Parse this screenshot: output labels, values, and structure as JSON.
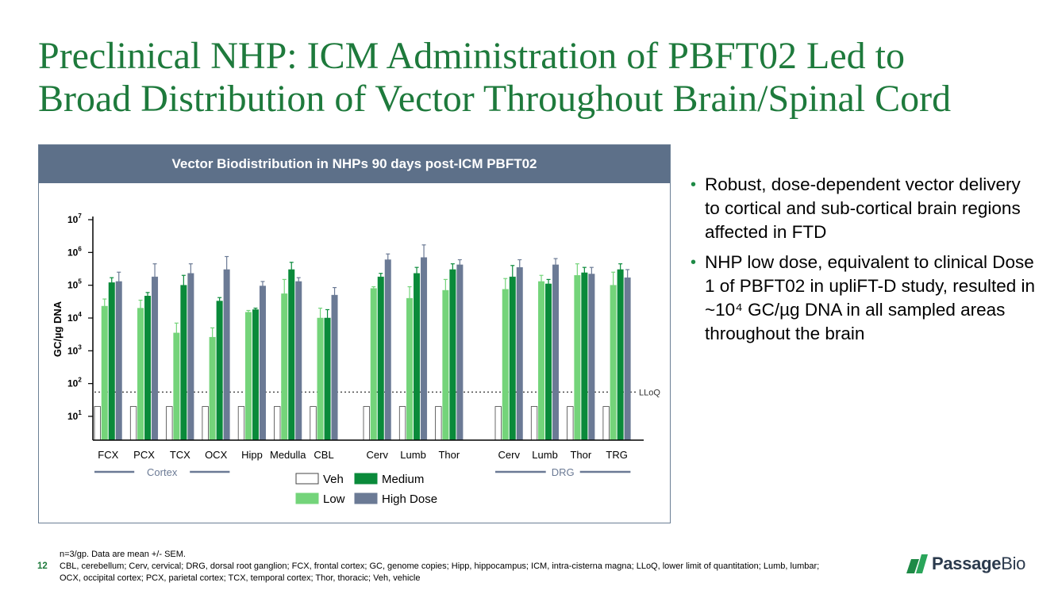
{
  "slide": {
    "title_line1": "Preclinical NHP: ICM Administration of PBFT02 Led to",
    "title_line2": "Broad Distribution of Vector Throughout Brain/Spinal Cord",
    "bullets": [
      "Robust, dose-dependent vector delivery to cortical and sub-cortical brain regions affected in FTD",
      "NHP low dose, equivalent to clinical Dose 1 of PBFT02 in upliFT-D study, resulted in ~10⁴ GC/µg DNA in all sampled areas throughout the brain"
    ],
    "footnote_line1": "n=3/gp. Data are mean +/- SEM.",
    "footnote_line2": "CBL, cerebellum; Cerv, cervical; DRG, dorsal root ganglion; FCX, frontal cortex; GC, genome copies; Hipp, hippocampus; ICM, intra-cisterna magna; LLoQ, lower limit of quantitation; Lumb, lumbar; OCX, occipital cortex; PCX, parietal cortex; TCX, temporal cortex; Thor, thoracic; Veh, vehicle",
    "page_number": "12",
    "logo_bold": "Passage",
    "logo_regular": "Bio"
  },
  "colors": {
    "title": "#1e7a3c",
    "header_bg": "#5d7089",
    "veh": "#ffffff",
    "low": "#74d47a",
    "medium": "#0a8a3a",
    "high": "#6b7a95"
  },
  "chart_data": {
    "type": "bar",
    "title": "Vector Biodistribution in NHPs 90 days post-ICM PBFT02",
    "ylabel": "GC/µg DNA",
    "yscale": "log",
    "ylim": [
      1,
      10000000
    ],
    "yticks": [
      {
        "value": 10,
        "base": "10",
        "exp": "1"
      },
      {
        "value": 100,
        "base": "10",
        "exp": "2"
      },
      {
        "value": 1000,
        "base": "10",
        "exp": "3"
      },
      {
        "value": 10000,
        "base": "10",
        "exp": "4"
      },
      {
        "value": 100000,
        "base": "10",
        "exp": "5"
      },
      {
        "value": 1000000,
        "base": "10",
        "exp": "6"
      },
      {
        "value": 10000000,
        "base": "10",
        "exp": "7"
      }
    ],
    "lloq": {
      "label": "LLoQ",
      "value": 55
    },
    "categories": [
      "FCX",
      "PCX",
      "TCX",
      "OCX",
      "Hipp",
      "Medulla",
      "CBL",
      "Cerv",
      "Lumb",
      "Thor",
      "Cerv",
      "Lumb",
      "Thor",
      "TRG"
    ],
    "category_groups": [
      0,
      0,
      0,
      0,
      0,
      0,
      0,
      1,
      1,
      1,
      2,
      2,
      2,
      2
    ],
    "group_labels": [
      {
        "label": "Cortex",
        "from": 0,
        "to": 3
      },
      {
        "label": "DRG",
        "from": 10,
        "to": 13
      }
    ],
    "series": [
      {
        "name": "Veh",
        "values": [
          20,
          20,
          20,
          20,
          20,
          20,
          20,
          20,
          20,
          20,
          20,
          20,
          20,
          20
        ],
        "errors": [
          20,
          20,
          20,
          20,
          20,
          20,
          20,
          20,
          20,
          20,
          20,
          20,
          20,
          20
        ]
      },
      {
        "name": "Low",
        "values": [
          23000,
          20000,
          3500,
          2600,
          15000,
          55000,
          10000,
          80000,
          40000,
          70000,
          75000,
          130000,
          200000,
          100000
        ],
        "errors": [
          38000,
          35000,
          7000,
          5000,
          17000,
          150000,
          20000,
          90000,
          90000,
          150000,
          160000,
          200000,
          450000,
          250000
        ]
      },
      {
        "name": "Medium",
        "values": [
          120000,
          47000,
          100000,
          33000,
          18000,
          300000,
          10000,
          180000,
          230000,
          300000,
          180000,
          110000,
          240000,
          300000
        ],
        "errors": [
          170000,
          60000,
          200000,
          42000,
          20000,
          500000,
          18000,
          230000,
          350000,
          450000,
          400000,
          150000,
          350000,
          450000
        ]
      },
      {
        "name": "High Dose",
        "values": [
          130000,
          180000,
          230000,
          300000,
          95000,
          130000,
          50000,
          600000,
          700000,
          420000,
          350000,
          420000,
          220000,
          170000
        ],
        "errors": [
          250000,
          450000,
          450000,
          750000,
          130000,
          170000,
          85000,
          900000,
          1700000,
          600000,
          600000,
          650000,
          350000,
          300000
        ]
      }
    ],
    "legend_placement": "bottom-center",
    "grid": false
  }
}
